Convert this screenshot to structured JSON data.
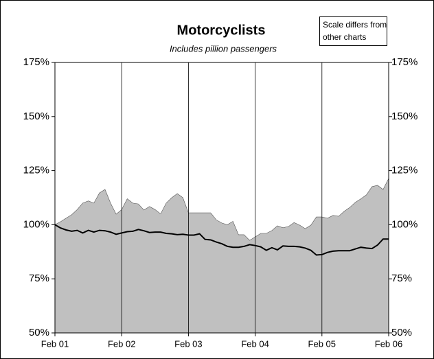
{
  "chart_data": {
    "type": "area",
    "title": "Motorcyclists",
    "subtitle": "Includes pillion passengers",
    "annotation": [
      "Scale differs from",
      "other charts"
    ],
    "x": [
      0,
      1,
      2,
      3,
      4,
      5,
      6,
      7,
      8,
      9,
      10,
      11,
      12,
      13,
      14,
      15,
      16,
      17,
      18,
      19,
      20,
      21,
      22,
      23,
      24,
      25,
      26,
      27,
      28,
      29,
      30,
      31,
      32,
      33,
      34,
      35,
      36,
      37,
      38,
      39,
      40,
      41,
      42,
      43,
      44,
      45,
      46,
      47,
      48,
      49,
      50,
      51,
      52,
      53,
      54,
      55,
      56,
      57,
      58,
      59,
      60
    ],
    "xlim": [
      0,
      60
    ],
    "xticks": [
      {
        "value": 0,
        "label": "Feb 01"
      },
      {
        "value": 12,
        "label": "Feb 02"
      },
      {
        "value": 24,
        "label": "Feb 03"
      },
      {
        "value": 36,
        "label": "Feb 04"
      },
      {
        "value": 48,
        "label": "Feb 05"
      },
      {
        "value": 60,
        "label": "Feb 06"
      }
    ],
    "ylim": [
      50,
      175
    ],
    "yticks": [
      {
        "value": 50,
        "label": "50%"
      },
      {
        "value": 75,
        "label": "75%"
      },
      {
        "value": 100,
        "label": "100%"
      },
      {
        "value": 125,
        "label": "125%"
      },
      {
        "value": 150,
        "label": "150%"
      },
      {
        "value": 175,
        "label": "175%"
      }
    ],
    "x_grid": true,
    "series": [
      {
        "type": "area",
        "color": "#c0c0c0",
        "values": [
          100,
          101.4,
          103,
          104.6,
          107,
          110,
          111,
          110,
          114.7,
          116.3,
          110,
          104.9,
          107,
          112,
          110,
          109.6,
          106.8,
          108.4,
          107,
          105,
          110,
          112.5,
          114.4,
          112.5,
          105.5,
          105.5,
          105.5,
          105.5,
          105.5,
          102.3,
          100.8,
          100,
          101.6,
          95.4,
          95.4,
          92.8,
          94.4,
          96,
          96,
          97.3,
          99.5,
          98.6,
          99.2,
          101,
          99.8,
          98.2,
          99.8,
          103.6,
          103.6,
          103,
          104.3,
          103.9,
          106.2,
          108,
          110.3,
          112,
          113.8,
          117.6,
          118.2,
          116.3,
          121.4
        ]
      },
      {
        "type": "line",
        "color": "#000000",
        "values": [
          100,
          98.5,
          97.6,
          97,
          97.4,
          96.2,
          97.4,
          96.6,
          97.4,
          97.2,
          96.6,
          95.6,
          96.2,
          96.8,
          97,
          97.8,
          97.2,
          96.4,
          96.6,
          96.6,
          96,
          95.8,
          95.4,
          95.6,
          95.2,
          95.2,
          95.8,
          93.2,
          93,
          92,
          91.2,
          90,
          89.6,
          89.6,
          90,
          90.8,
          90.4,
          89.8,
          88.2,
          89.4,
          88.4,
          90.2,
          90,
          90,
          89.8,
          89.2,
          88.2,
          86,
          86.2,
          87.2,
          87.8,
          88,
          88,
          88,
          88.8,
          89.6,
          89.2,
          89,
          90.6,
          93.4,
          93.4
        ]
      }
    ]
  }
}
